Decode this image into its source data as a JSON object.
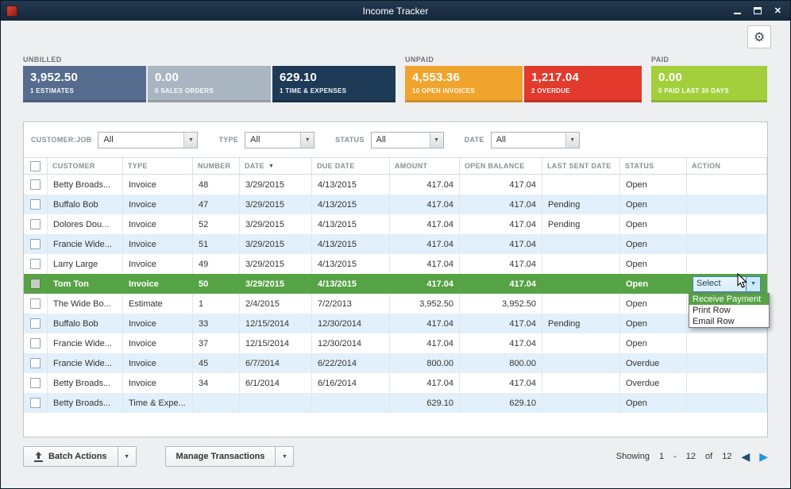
{
  "window": {
    "title": "Income Tracker"
  },
  "icons": {
    "gear": "⚙",
    "close": "✕",
    "dropdown": "▼",
    "sort_desc": "▼",
    "nav_prev": "◀",
    "nav_next": "▶"
  },
  "colors": {
    "titlebar": "#15273c",
    "estimates_tile": "#566c8f",
    "sales_orders_tile": "#a9b6c2",
    "time_expenses_tile": "#1d3a56",
    "open_invoices_tile": "#f1a42d",
    "overdue_tile": "#e23a2d",
    "paid_tile": "#a3cf3d",
    "selected_row": "#56a345",
    "alt_row": "#e1f0fb"
  },
  "summary": {
    "groups": [
      {
        "label": "UNBILLED",
        "tiles": [
          {
            "amount": "3,952.50",
            "caption": "1 ESTIMATES"
          },
          {
            "amount": "0.00",
            "caption": "0 SALES ORDERS"
          },
          {
            "amount": "629.10",
            "caption": "1 TIME & EXPENSES"
          }
        ]
      },
      {
        "label": "UNPAID",
        "tiles": [
          {
            "amount": "4,553.36",
            "caption": "10 OPEN INVOICES"
          },
          {
            "amount": "1,217.04",
            "caption": "2 OVERDUE"
          }
        ]
      },
      {
        "label": "PAID",
        "tiles": [
          {
            "amount": "0.00",
            "caption": "0 PAID LAST 30 DAYS"
          }
        ]
      }
    ]
  },
  "filters": [
    {
      "label": "CUSTOMER:JOB",
      "value": "All"
    },
    {
      "label": "TYPE",
      "value": "All"
    },
    {
      "label": "STATUS",
      "value": "All"
    },
    {
      "label": "DATE",
      "value": "All"
    }
  ],
  "table": {
    "columns": [
      "CUSTOMER",
      "TYPE",
      "NUMBER",
      "DATE",
      "DUE DATE",
      "AMOUNT",
      "OPEN BALANCE",
      "LAST SENT DATE",
      "STATUS",
      "ACTION"
    ],
    "rows": [
      {
        "customer": "Betty Broads...",
        "type": "Invoice",
        "number": "48",
        "date": "3/29/2015",
        "due_date": "4/13/2015",
        "amount": "417.04",
        "open_balance": "417.04",
        "last_sent": "",
        "status": "Open"
      },
      {
        "customer": "Buffalo Bob",
        "type": "Invoice",
        "number": "47",
        "date": "3/29/2015",
        "due_date": "4/13/2015",
        "amount": "417.04",
        "open_balance": "417.04",
        "last_sent": "Pending",
        "status": "Open"
      },
      {
        "customer": "Dolores Dou...",
        "type": "Invoice",
        "number": "52",
        "date": "3/29/2015",
        "due_date": "4/13/2015",
        "amount": "417.04",
        "open_balance": "417.04",
        "last_sent": "Pending",
        "status": "Open"
      },
      {
        "customer": "Francie Wide...",
        "type": "Invoice",
        "number": "51",
        "date": "3/29/2015",
        "due_date": "4/13/2015",
        "amount": "417.04",
        "open_balance": "417.04",
        "last_sent": "",
        "status": "Open"
      },
      {
        "customer": "Larry Large",
        "type": "Invoice",
        "number": "49",
        "date": "3/29/2015",
        "due_date": "4/13/2015",
        "amount": "417.04",
        "open_balance": "417.04",
        "last_sent": "",
        "status": "Open"
      },
      {
        "customer": "Tom Ton",
        "type": "Invoice",
        "number": "50",
        "date": "3/29/2015",
        "due_date": "4/13/2015",
        "amount": "417.04",
        "open_balance": "417.04",
        "last_sent": "",
        "status": "Open",
        "selected": true
      },
      {
        "customer": "The Wide Bo...",
        "type": "Estimate",
        "number": "1",
        "date": "2/4/2015",
        "due_date": "7/2/2013",
        "amount": "3,952.50",
        "open_balance": "3,952.50",
        "last_sent": "",
        "status": "Open"
      },
      {
        "customer": "Buffalo Bob",
        "type": "Invoice",
        "number": "33",
        "date": "12/15/2014",
        "due_date": "12/30/2014",
        "amount": "417.04",
        "open_balance": "417.04",
        "last_sent": "Pending",
        "status": "Open"
      },
      {
        "customer": "Francie Wide...",
        "type": "Invoice",
        "number": "37",
        "date": "12/15/2014",
        "due_date": "12/30/2014",
        "amount": "417.04",
        "open_balance": "417.04",
        "last_sent": "",
        "status": "Open"
      },
      {
        "customer": "Francie Wide...",
        "type": "Invoice",
        "number": "45",
        "date": "6/7/2014",
        "due_date": "6/22/2014",
        "amount": "800.00",
        "open_balance": "800.00",
        "last_sent": "",
        "status": "Overdue"
      },
      {
        "customer": "Betty Broads...",
        "type": "Invoice",
        "number": "34",
        "date": "6/1/2014",
        "due_date": "6/16/2014",
        "amount": "417.04",
        "open_balance": "417.04",
        "last_sent": "",
        "status": "Overdue"
      },
      {
        "customer": "Betty Broads...",
        "type": "Time & Expe...",
        "number": "",
        "date": "",
        "due_date": "",
        "amount": "629.10",
        "open_balance": "629.10",
        "last_sent": "",
        "status": "Open"
      }
    ]
  },
  "action_menu": {
    "select_label": "Select",
    "items": [
      "Receive Payment",
      "Print Row",
      "Email Row"
    ]
  },
  "footer": {
    "batch_actions_label": "Batch Actions",
    "manage_transactions_label": "Manage Transactions",
    "showing": {
      "label": "Showing",
      "start": "1",
      "separator": "-",
      "end": "12",
      "of": "of",
      "total": "12"
    }
  }
}
